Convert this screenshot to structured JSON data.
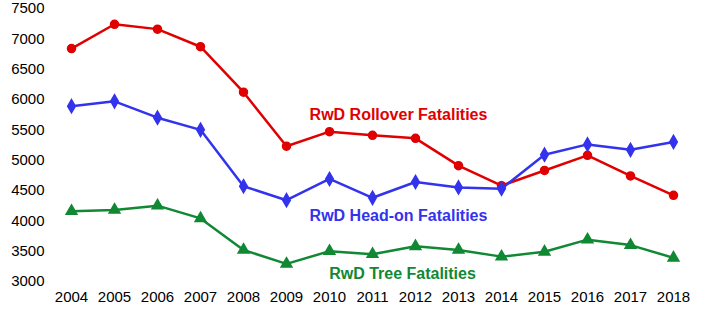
{
  "chart_data": {
    "type": "line",
    "categories": [
      "2004",
      "2005",
      "2006",
      "2007",
      "2008",
      "2009",
      "2010",
      "2011",
      "2012",
      "2013",
      "2014",
      "2015",
      "2016",
      "2017",
      "2018"
    ],
    "series": [
      {
        "name": "RwD Rollover Fatalities",
        "color": "#e00000",
        "marker": "circle",
        "values": [
          6840,
          7240,
          7160,
          6870,
          6120,
          5230,
          5470,
          5410,
          5360,
          4910,
          4580,
          4830,
          5080,
          4740,
          4420
        ]
      },
      {
        "name": "RwD Head-on Fatalities",
        "color": "#3333ee",
        "marker": "diamond",
        "values": [
          5890,
          5970,
          5700,
          5500,
          4570,
          4340,
          4690,
          4380,
          4640,
          4550,
          4530,
          5090,
          5260,
          5170,
          5300
        ]
      },
      {
        "name": "RwD Tree Fatalities",
        "color": "#118833",
        "marker": "triangle",
        "values": [
          4160,
          4180,
          4250,
          4040,
          3520,
          3290,
          3500,
          3450,
          3580,
          3520,
          3410,
          3490,
          3690,
          3600,
          3390
        ]
      }
    ],
    "ylim": [
      3000,
      7500
    ],
    "yticks": [
      3000,
      3500,
      4000,
      4500,
      5000,
      5500,
      6000,
      6500,
      7000,
      7500
    ],
    "grid": false
  }
}
